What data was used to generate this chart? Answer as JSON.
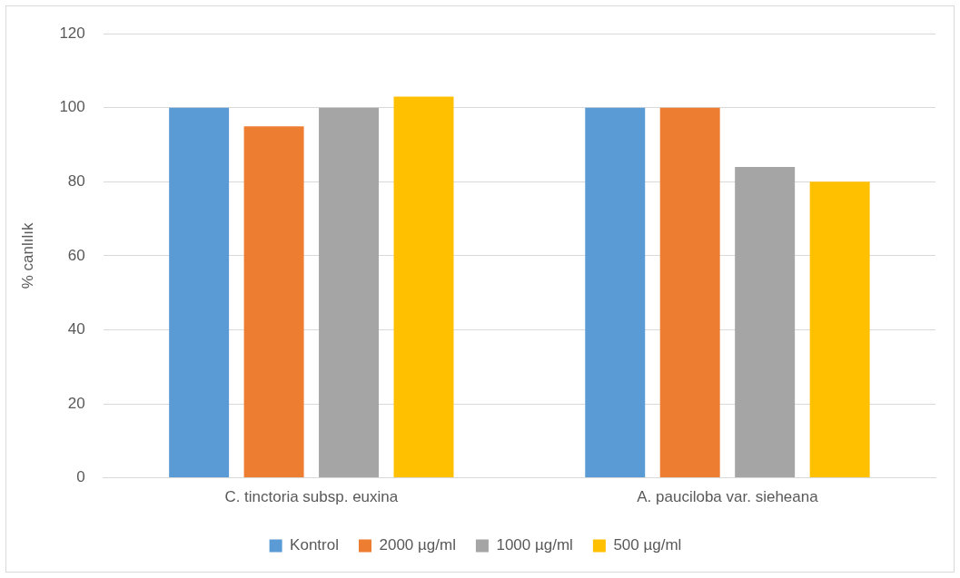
{
  "chart_data": {
    "type": "bar",
    "ylabel": "% canlılık",
    "categories": [
      "C. tinctoria subsp. euxina",
      "A. pauciloba var. sieheana"
    ],
    "series": [
      {
        "name": "Kontrol",
        "color": "#5b9bd5",
        "values": [
          100,
          100
        ]
      },
      {
        "name": "2000 µg/ml",
        "color": "#ed7d31",
        "values": [
          95,
          100
        ]
      },
      {
        "name": "1000 µg/ml",
        "color": "#a5a5a5",
        "values": [
          100,
          84
        ]
      },
      {
        "name": "500 µg/ml",
        "color": "#ffc000",
        "values": [
          103,
          80
        ]
      }
    ],
    "ylim": [
      0,
      120
    ],
    "yticks": [
      0,
      20,
      40,
      60,
      80,
      100,
      120
    ],
    "grid": "y",
    "legend": "bottom"
  }
}
